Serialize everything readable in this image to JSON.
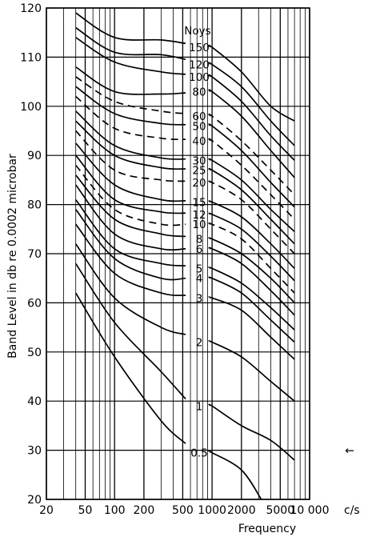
{
  "chart_data": {
    "type": "line",
    "ylabel": "Band Level in db re 0.0002 microbar",
    "xlabel": "Frequency",
    "x_unit": "c/s",
    "x_scale": "log",
    "xlim": [
      20,
      10000
    ],
    "ylim": [
      20,
      120
    ],
    "grid": true,
    "x_ticks": [
      20,
      50,
      100,
      200,
      500,
      1000,
      2000,
      5000,
      10000
    ],
    "x_tick_labels": [
      "20",
      "50",
      "100",
      "200",
      "500",
      "1000",
      "2000",
      "5000",
      "10 000"
    ],
    "y_ticks": [
      20,
      30,
      40,
      50,
      60,
      70,
      80,
      90,
      100,
      110,
      120
    ],
    "label_header": "Noys",
    "series": [
      {
        "name": "150",
        "dashed": false,
        "points": [
          [
            40,
            119
          ],
          [
            100,
            114
          ],
          [
            300,
            113.5
          ],
          [
            1000,
            112
          ],
          [
            2000,
            107
          ],
          [
            4000,
            100
          ],
          [
            7000,
            97
          ]
        ]
      },
      {
        "name": "120",
        "dashed": false,
        "points": [
          [
            40,
            116
          ],
          [
            100,
            111
          ],
          [
            300,
            110.5
          ],
          [
            1000,
            108.5
          ],
          [
            2000,
            104
          ],
          [
            4000,
            97
          ],
          [
            7000,
            92
          ]
        ]
      },
      {
        "name": "100",
        "dashed": false,
        "points": [
          [
            40,
            114
          ],
          [
            100,
            109
          ],
          [
            300,
            107
          ],
          [
            1000,
            106
          ],
          [
            2000,
            101
          ],
          [
            4000,
            94
          ],
          [
            7000,
            89
          ]
        ]
      },
      {
        "name": "80",
        "dashed": false,
        "points": [
          [
            40,
            108
          ],
          [
            100,
            103
          ],
          [
            300,
            102.5
          ],
          [
            1000,
            103
          ],
          [
            2000,
            98
          ],
          [
            4000,
            91
          ],
          [
            7000,
            85.5
          ]
        ]
      },
      {
        "name": "60",
        "dashed": true,
        "points": [
          [
            40,
            106
          ],
          [
            100,
            101
          ],
          [
            300,
            99
          ],
          [
            1000,
            98
          ],
          [
            2000,
            93
          ],
          [
            4000,
            87
          ],
          [
            7000,
            82
          ]
        ]
      },
      {
        "name": "50",
        "dashed": false,
        "points": [
          [
            40,
            104
          ],
          [
            100,
            98.5
          ],
          [
            300,
            96.5
          ],
          [
            1000,
            96
          ],
          [
            2000,
            91
          ],
          [
            4000,
            84.5
          ],
          [
            7000,
            79.5
          ]
        ]
      },
      {
        "name": "40",
        "dashed": true,
        "points": [
          [
            40,
            102
          ],
          [
            100,
            95.5
          ],
          [
            300,
            93.5
          ],
          [
            1000,
            93
          ],
          [
            2000,
            88
          ],
          [
            4000,
            82
          ],
          [
            7000,
            77
          ]
        ]
      },
      {
        "name": "30",
        "dashed": false,
        "points": [
          [
            40,
            99
          ],
          [
            100,
            92
          ],
          [
            300,
            89.5
          ],
          [
            1000,
            89
          ],
          [
            2000,
            85
          ],
          [
            4000,
            79
          ],
          [
            7000,
            74.5
          ]
        ]
      },
      {
        "name": "25",
        "dashed": false,
        "points": [
          [
            40,
            97
          ],
          [
            100,
            90
          ],
          [
            300,
            87.5
          ],
          [
            1000,
            87
          ],
          [
            2000,
            83
          ],
          [
            4000,
            77
          ],
          [
            7000,
            72
          ]
        ]
      },
      {
        "name": "20",
        "dashed": true,
        "points": [
          [
            40,
            95
          ],
          [
            100,
            87
          ],
          [
            300,
            85
          ],
          [
            1000,
            84.5
          ],
          [
            2000,
            81
          ],
          [
            4000,
            75
          ],
          [
            7000,
            70
          ]
        ]
      },
      {
        "name": "15",
        "dashed": false,
        "points": [
          [
            40,
            92.5
          ],
          [
            100,
            84
          ],
          [
            300,
            81
          ],
          [
            1000,
            80.5
          ],
          [
            2000,
            77.5
          ],
          [
            4000,
            72
          ],
          [
            7000,
            67
          ]
        ]
      },
      {
        "name": "12",
        "dashed": false,
        "points": [
          [
            40,
            90
          ],
          [
            100,
            81
          ],
          [
            300,
            78.5
          ],
          [
            1000,
            78
          ],
          [
            2000,
            75
          ],
          [
            4000,
            69.5
          ],
          [
            7000,
            64.5
          ]
        ]
      },
      {
        "name": "10",
        "dashed": true,
        "points": [
          [
            40,
            88
          ],
          [
            100,
            79
          ],
          [
            300,
            76
          ],
          [
            1000,
            76
          ],
          [
            2000,
            73
          ],
          [
            4000,
            67
          ],
          [
            7000,
            62
          ]
        ]
      },
      {
        "name": "8",
        "dashed": false,
        "points": [
          [
            40,
            86
          ],
          [
            100,
            77
          ],
          [
            300,
            74
          ],
          [
            1000,
            73
          ],
          [
            2000,
            70
          ],
          [
            4000,
            65
          ],
          [
            7000,
            60
          ]
        ]
      },
      {
        "name": "6",
        "dashed": false,
        "points": [
          [
            40,
            84
          ],
          [
            100,
            74
          ],
          [
            300,
            71
          ],
          [
            1000,
            71
          ],
          [
            2000,
            68
          ],
          [
            4000,
            62.5
          ],
          [
            7000,
            57.5
          ]
        ]
      },
      {
        "name": "5",
        "dashed": false,
        "points": [
          [
            40,
            81
          ],
          [
            100,
            71
          ],
          [
            300,
            68
          ],
          [
            1000,
            67
          ],
          [
            2000,
            64
          ],
          [
            4000,
            59
          ],
          [
            7000,
            54.5
          ]
        ]
      },
      {
        "name": "4",
        "dashed": false,
        "points": [
          [
            40,
            79
          ],
          [
            100,
            69
          ],
          [
            300,
            65
          ],
          [
            1000,
            65
          ],
          [
            2000,
            62
          ],
          [
            4000,
            56.5
          ],
          [
            7000,
            52
          ]
        ]
      },
      {
        "name": "3",
        "dashed": false,
        "points": [
          [
            40,
            76
          ],
          [
            100,
            66
          ],
          [
            300,
            62
          ],
          [
            1000,
            61
          ],
          [
            2000,
            58.5
          ],
          [
            4000,
            53
          ],
          [
            7000,
            48.5
          ]
        ]
      },
      {
        "name": "2",
        "dashed": false,
        "points": [
          [
            40,
            72
          ],
          [
            100,
            61
          ],
          [
            300,
            55
          ],
          [
            1000,
            52
          ],
          [
            2000,
            49
          ],
          [
            4000,
            44
          ],
          [
            7000,
            40
          ]
        ]
      },
      {
        "name": "1",
        "dashed": false,
        "points": [
          [
            40,
            68
          ],
          [
            100,
            56
          ],
          [
            300,
            46
          ],
          [
            560,
            40
          ],
          [
            1000,
            39
          ],
          [
            2000,
            35
          ],
          [
            4000,
            32
          ],
          [
            7000,
            28
          ]
        ]
      },
      {
        "name": "0.5",
        "dashed": false,
        "points": [
          [
            40,
            62
          ],
          [
            100,
            49
          ],
          [
            300,
            36
          ],
          [
            560,
            31
          ],
          [
            1000,
            29.5
          ],
          [
            2000,
            26
          ],
          [
            3200,
            20
          ]
        ]
      }
    ],
    "annotations": [
      {
        "text": "←",
        "x": 10000,
        "y": 30
      }
    ]
  }
}
